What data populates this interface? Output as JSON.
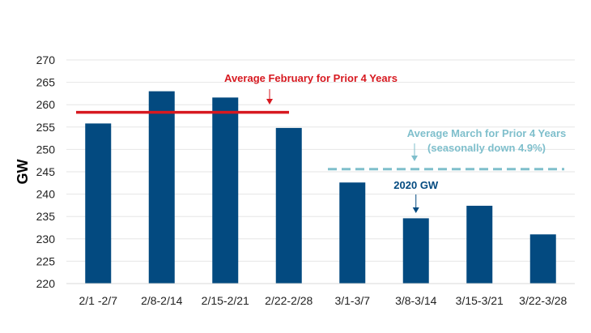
{
  "chart_data": {
    "type": "bar",
    "title": "",
    "xlabel": "",
    "ylabel": "GW",
    "ylim": [
      220,
      270
    ],
    "yticks": [
      220,
      225,
      230,
      235,
      240,
      245,
      250,
      255,
      260,
      265,
      270
    ],
    "grid": true,
    "legend": "none",
    "categories": [
      "2/1 -2/7",
      "2/8-2/14",
      "2/15-2/21",
      "2/22-2/28",
      "3/1-3/7",
      "3/8-3/14",
      "3/15-3/21",
      "3/22-3/28"
    ],
    "series": [
      {
        "values": [
          255.8,
          263.0,
          261.6,
          254.8,
          242.6,
          234.6,
          237.4,
          231.0
        ],
        "color": "#034a80"
      }
    ],
    "reference_lines": [
      {
        "label": "Average February for Prior 4 Years",
        "value": 258.3,
        "from_category": 0,
        "to_category": 3,
        "style": "solid",
        "color": "#d71920"
      },
      {
        "label": "Average March for Prior 4 Years",
        "sublabel": "(seasonally down 4.9%)",
        "value": 245.6,
        "from_category": 4,
        "to_category": 7,
        "style": "dashed",
        "color": "#7fbfcc"
      }
    ],
    "annotations": [
      {
        "text": "2020 GW",
        "category": 5,
        "color": "#034a80"
      }
    ]
  }
}
